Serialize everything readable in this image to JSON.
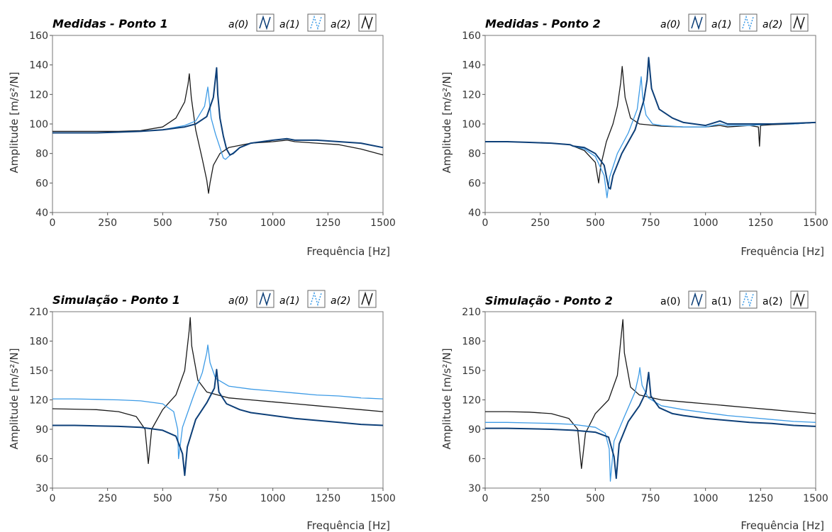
{
  "charts": [
    {
      "title": "Medidas - Ponto 1",
      "ylabel": "Amplitude [m/s²/N]",
      "xlabel": "Frequência [Hz]",
      "legend_italic": true,
      "xlim": [
        0,
        1500
      ],
      "ylim": [
        40,
        160
      ],
      "xticks": [
        0,
        250,
        500,
        750,
        1000,
        1250,
        1500
      ],
      "yticks": [
        40,
        60,
        80,
        100,
        120,
        140,
        160
      ],
      "legend": [
        "a(0)",
        "a(1)",
        "a(2)"
      ]
    },
    {
      "title": "Medidas - Ponto 2",
      "ylabel": "Amplitude [m/s²/N]",
      "xlabel": "Frequência [Hz]",
      "legend_italic": true,
      "xlim": [
        0,
        1500
      ],
      "ylim": [
        40,
        160
      ],
      "xticks": [
        0,
        250,
        500,
        750,
        1000,
        1250,
        1500
      ],
      "yticks": [
        40,
        60,
        80,
        100,
        120,
        140,
        160
      ],
      "legend": [
        "a(0)",
        "a(1)",
        "a(2)"
      ]
    },
    {
      "title": "Simulação - Ponto 1",
      "ylabel": "Amplitude [m/s²/N]",
      "xlabel": "Frequência [Hz]",
      "legend_italic": true,
      "xlim": [
        0,
        1500
      ],
      "ylim": [
        30,
        210
      ],
      "xticks": [
        0,
        250,
        500,
        750,
        1000,
        1250,
        1500
      ],
      "yticks": [
        30,
        60,
        90,
        120,
        150,
        180,
        210
      ],
      "legend": [
        "a(0)",
        "a(1)",
        "a(2)"
      ]
    },
    {
      "title": "Simulação - Ponto 2",
      "ylabel": "Amplitude [m/s²/N]",
      "xlabel": "Frequência [Hz]",
      "legend_italic": false,
      "xlim": [
        0,
        1500
      ],
      "ylim": [
        30,
        210
      ],
      "xticks": [
        0,
        250,
        500,
        750,
        1000,
        1250,
        1500
      ],
      "yticks": [
        30,
        60,
        90,
        120,
        150,
        180,
        210
      ],
      "legend": [
        "a(0)",
        "a(1)",
        "a(2)"
      ]
    }
  ],
  "chart_data": [
    {
      "type": "line",
      "title": "Medidas - Ponto 1",
      "xlabel": "Frequência [Hz]",
      "ylabel": "Amplitude [m/s²/N]",
      "xlim": [
        0,
        1500
      ],
      "ylim": [
        40,
        160
      ],
      "grid": false,
      "legend_position": "top-right",
      "series": [
        {
          "name": "a(0)",
          "color": "#1a1a1a",
          "style": "solid",
          "x": [
            0,
            100,
            200,
            300,
            400,
            500,
            560,
            600,
            615,
            621,
            630,
            650,
            680,
            700,
            708,
            715,
            730,
            760,
            800,
            900,
            1000,
            1065,
            1100,
            1200,
            1300,
            1400,
            1500
          ],
          "y": [
            95,
            95,
            95,
            95,
            95.5,
            98,
            104,
            115,
            127,
            134,
            118,
            96,
            76,
            62,
            53,
            60,
            72,
            80,
            84,
            87,
            88,
            89,
            88,
            87,
            86,
            83,
            79
          ]
        },
        {
          "name": "a(1)",
          "color": "#3d9be6",
          "style": "solid",
          "x": [
            0,
            100,
            200,
            300,
            400,
            500,
            600,
            650,
            690,
            705,
            710,
            720,
            740,
            760,
            775,
            785,
            800,
            850,
            900,
            1000,
            1065,
            1100,
            1200,
            1300,
            1400,
            1500
          ],
          "y": [
            94,
            94,
            94,
            94.5,
            95,
            96,
            99,
            102,
            112,
            125,
            118,
            104,
            93,
            84,
            77,
            76,
            78,
            84,
            87,
            89,
            90,
            89,
            89,
            88,
            87,
            84
          ]
        },
        {
          "name": "a(2)",
          "color": "#0d3f78",
          "style": "solid",
          "x": [
            0,
            100,
            200,
            300,
            400,
            500,
            600,
            650,
            700,
            730,
            745,
            750,
            760,
            775,
            790,
            805,
            820,
            850,
            900,
            1000,
            1065,
            1100,
            1200,
            1300,
            1400,
            1500
          ],
          "y": [
            94,
            94,
            94,
            94.5,
            95,
            96,
            98,
            100,
            105,
            118,
            138,
            120,
            104,
            92,
            83,
            79,
            80,
            84,
            87,
            89,
            90,
            89,
            89,
            88,
            87,
            84
          ]
        }
      ]
    },
    {
      "type": "line",
      "title": "Medidas - Ponto 2",
      "xlabel": "Frequência [Hz]",
      "ylabel": "Amplitude [m/s²/N]",
      "xlim": [
        0,
        1500
      ],
      "ylim": [
        40,
        160
      ],
      "grid": false,
      "legend_position": "top-right",
      "series": [
        {
          "name": "a(0)",
          "color": "#1a1a1a",
          "style": "solid",
          "x": [
            0,
            100,
            200,
            300,
            385,
            400,
            450,
            500,
            515,
            525,
            550,
            580,
            600,
            615,
            622,
            635,
            660,
            700,
            800,
            900,
            1000,
            1065,
            1100,
            1200,
            1240,
            1245,
            1250,
            1300,
            1400,
            1500
          ],
          "y": [
            88,
            88,
            87.5,
            87,
            86,
            85,
            82,
            74,
            60,
            72,
            88,
            100,
            112,
            128,
            139,
            118,
            104,
            100,
            98.5,
            98,
            98,
            99,
            98,
            99,
            98,
            85,
            99,
            99.5,
            100,
            101
          ]
        },
        {
          "name": "a(1)",
          "color": "#3d9be6",
          "style": "solid",
          "x": [
            0,
            100,
            200,
            300,
            385,
            400,
            450,
            500,
            540,
            553,
            565,
            600,
            650,
            690,
            708,
            715,
            730,
            760,
            800,
            900,
            1000,
            1065,
            1100,
            1200,
            1300,
            1400,
            1500
          ],
          "y": [
            88,
            88,
            87.5,
            87,
            86,
            85,
            83,
            78,
            65,
            50,
            64,
            80,
            94,
            110,
            132,
            118,
            106,
            100,
            99,
            98,
            98,
            100,
            99,
            99,
            100,
            100,
            101
          ]
        },
        {
          "name": "a(2)",
          "color": "#0d3f78",
          "style": "solid",
          "x": [
            0,
            100,
            200,
            300,
            385,
            400,
            450,
            500,
            540,
            560,
            568,
            580,
            620,
            680,
            720,
            735,
            742,
            755,
            790,
            850,
            900,
            1000,
            1065,
            1100,
            1200,
            1300,
            1400,
            1500
          ],
          "y": [
            88,
            88,
            87.5,
            87,
            86,
            85,
            84,
            80,
            72,
            57,
            56,
            65,
            80,
            96,
            116,
            130,
            145,
            124,
            110,
            104,
            101,
            99,
            102,
            100,
            100,
            100,
            100.5,
            101
          ]
        }
      ]
    },
    {
      "type": "line",
      "title": "Simulação - Ponto 1",
      "xlabel": "Frequência [Hz]",
      "ylabel": "Amplitude [m/s²/N]",
      "xlim": [
        0,
        1500
      ],
      "ylim": [
        30,
        210
      ],
      "grid": false,
      "legend_position": "top-right",
      "series": [
        {
          "name": "a(0)",
          "color": "#1a1a1a",
          "style": "solid",
          "x": [
            0,
            100,
            200,
            300,
            380,
            420,
            435,
            450,
            500,
            560,
            600,
            620,
            625,
            632,
            660,
            700,
            800,
            900,
            1000,
            1100,
            1200,
            1300,
            1400,
            1500
          ],
          "y": [
            111,
            110.5,
            110,
            108,
            103,
            90,
            55,
            90,
            110,
            125,
            150,
            190,
            204,
            175,
            140,
            128,
            122,
            120,
            118,
            116,
            114,
            112,
            110,
            108
          ]
        },
        {
          "name": "a(1)",
          "color": "#3d9be6",
          "style": "solid",
          "x": [
            0,
            100,
            200,
            300,
            400,
            500,
            550,
            568,
            572,
            590,
            640,
            680,
            700,
            705,
            715,
            740,
            800,
            900,
            1000,
            1100,
            1200,
            1300,
            1400,
            1500
          ],
          "y": [
            121,
            121,
            120.5,
            120,
            119,
            116,
            108,
            90,
            60,
            92,
            124,
            148,
            168,
            176,
            158,
            142,
            134,
            131,
            129,
            127,
            125,
            124,
            122,
            121
          ]
        },
        {
          "name": "a(2)",
          "color": "#0d3f78",
          "style": "solid",
          "x": [
            0,
            100,
            200,
            300,
            400,
            500,
            560,
            590,
            600,
            612,
            650,
            700,
            735,
            745,
            755,
            790,
            850,
            900,
            1000,
            1100,
            1200,
            1300,
            1400,
            1500
          ],
          "y": [
            94,
            94,
            93.5,
            93,
            92,
            89,
            83,
            65,
            43,
            72,
            100,
            117,
            132,
            151,
            128,
            116,
            110,
            107,
            104,
            101,
            99,
            97,
            95,
            94
          ]
        }
      ]
    },
    {
      "type": "line",
      "title": "Simulação - Ponto 2",
      "xlabel": "Frequência [Hz]",
      "ylabel": "Amplitude [m/s²/N]",
      "xlim": [
        0,
        1500
      ],
      "ylim": [
        30,
        210
      ],
      "grid": false,
      "legend_position": "top-right",
      "series": [
        {
          "name": "a(0)",
          "color": "#1a1a1a",
          "style": "solid",
          "x": [
            0,
            100,
            200,
            300,
            380,
            420,
            437,
            455,
            500,
            560,
            600,
            615,
            625,
            632,
            660,
            700,
            800,
            900,
            1000,
            1100,
            1200,
            1300,
            1400,
            1500
          ],
          "y": [
            108,
            108,
            107.5,
            106,
            101,
            90,
            50,
            86,
            106,
            120,
            145,
            180,
            202,
            168,
            133,
            125,
            120,
            118,
            116,
            114,
            112,
            110,
            108,
            106
          ]
        },
        {
          "name": "a(1)",
          "color": "#3d9be6",
          "style": "solid",
          "x": [
            0,
            100,
            200,
            300,
            400,
            500,
            545,
            563,
            568,
            585,
            630,
            680,
            698,
            702,
            712,
            740,
            800,
            900,
            1000,
            1100,
            1200,
            1300,
            1400,
            1500
          ],
          "y": [
            97,
            97,
            96.5,
            96,
            95,
            92,
            86,
            70,
            37,
            78,
            102,
            128,
            146,
            153,
            135,
            122,
            114,
            110,
            107,
            104,
            102,
            100,
            98,
            97
          ]
        },
        {
          "name": "a(2)",
          "color": "#0d3f78",
          "style": "solid",
          "x": [
            0,
            100,
            200,
            300,
            400,
            500,
            560,
            585,
            595,
            608,
            650,
            700,
            730,
            742,
            752,
            790,
            850,
            900,
            1000,
            1100,
            1200,
            1300,
            1400,
            1500
          ],
          "y": [
            91,
            91,
            90.5,
            90,
            89,
            87,
            82,
            62,
            40,
            75,
            98,
            114,
            128,
            148,
            124,
            112,
            106,
            104,
            101,
            99,
            97,
            96,
            94,
            93
          ]
        }
      ]
    }
  ]
}
